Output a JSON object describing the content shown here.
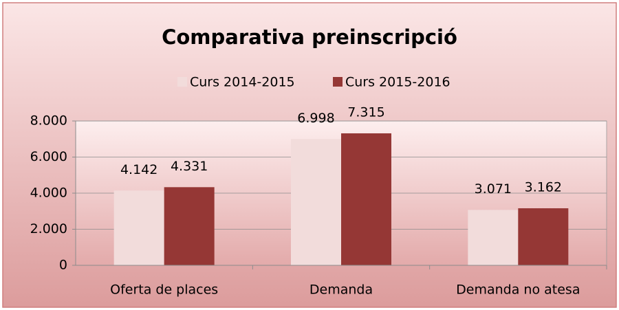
{
  "chart_data": {
    "type": "bar",
    "title": "Comparativa preinscripció",
    "categories": [
      "Oferta de places",
      "Demanda",
      "Demanda no atesa"
    ],
    "series": [
      {
        "name": "Curs 2014-2015",
        "color": "#f2dcdb",
        "values": [
          4142,
          6998,
          3071
        ],
        "value_labels": [
          "4.142",
          "6.998",
          "3.071"
        ]
      },
      {
        "name": "Curs 2015-2016",
        "color": "#953735",
        "values": [
          4331,
          7315,
          3162
        ],
        "value_labels": [
          "4.331",
          "7.315",
          "3.162"
        ]
      }
    ],
    "ylim": [
      0,
      8000
    ],
    "yticks": [
      0,
      {
        "value": 2000,
        "label": "2.000"
      },
      {
        "value": 4000,
        "label": "4.000"
      },
      {
        "value": 6000,
        "label": "6.000"
      },
      {
        "value": 8000,
        "label": "8.000"
      }
    ],
    "grid": true,
    "legend": "top"
  }
}
